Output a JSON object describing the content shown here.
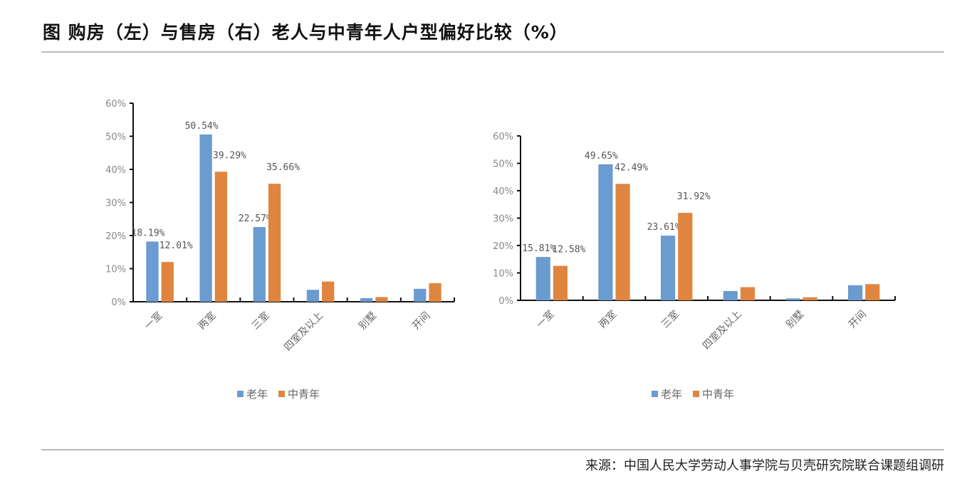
{
  "title": "图  购房（左）与售房（右）老人与中青年人户型偏好比较（%）",
  "source": "来源：中国人民大学劳动人事学院与贝壳研究院联合课题组调研",
  "chart_data": [
    {
      "type": "bar",
      "categories": [
        "一室",
        "两室",
        "三室",
        "四室及以上",
        "别墅",
        "开间"
      ],
      "series": [
        {
          "name": "老年",
          "color": "#6A9BD1",
          "values": [
            18.19,
            50.54,
            22.57,
            3.6,
            1.1,
            3.9
          ],
          "labels": [
            "18.19%",
            "50.54%",
            "22.57%",
            null,
            null,
            null
          ]
        },
        {
          "name": "中青年",
          "color": "#E08540",
          "values": [
            12.01,
            39.29,
            35.66,
            6.1,
            1.4,
            5.6
          ],
          "labels": [
            "12.01%",
            "39.29%",
            "35.66%",
            null,
            null,
            null
          ]
        }
      ],
      "yticks": [
        "0%",
        "10%",
        "20%",
        "30%",
        "40%",
        "50%",
        "60%"
      ],
      "ylim": [
        0,
        60
      ],
      "legend": "bottom"
    },
    {
      "type": "bar",
      "categories": [
        "一室",
        "两室",
        "三室",
        "四室及以上",
        "别墅",
        "开间"
      ],
      "series": [
        {
          "name": "老年",
          "color": "#6A9BD1",
          "values": [
            15.81,
            49.65,
            23.61,
            3.4,
            0.7,
            5.5
          ],
          "labels": [
            "15.81%",
            "49.65%",
            "23.61%",
            null,
            null,
            null
          ]
        },
        {
          "name": "中青年",
          "color": "#E08540",
          "values": [
            12.58,
            42.49,
            31.92,
            4.8,
            1.1,
            5.9
          ],
          "labels": [
            "12.58%",
            "42.49%",
            "31.92%",
            null,
            null,
            null
          ]
        }
      ],
      "yticks": [
        "0%",
        "10%",
        "20%",
        "30%",
        "40%",
        "50%",
        "60%"
      ],
      "ylim": [
        0,
        60
      ],
      "legend": "bottom"
    }
  ]
}
